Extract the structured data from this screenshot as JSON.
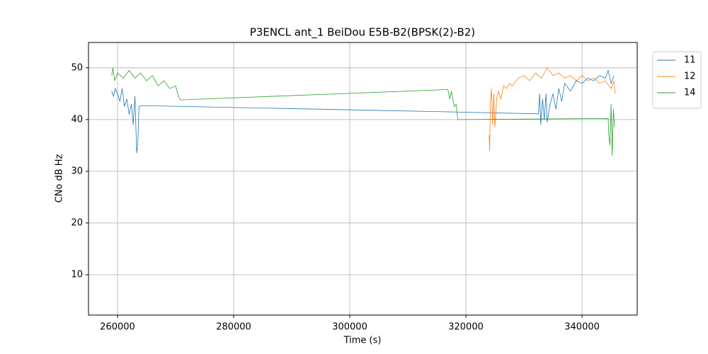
{
  "chart_data": {
    "type": "line",
    "title": "P3ENCL ant_1 BeiDou E5B-B2(BPSK(2)-B2)",
    "x_label": "Time (s)",
    "y_label": "CNo dB Hz",
    "xlim": [
      255000,
      349500
    ],
    "ylim": [
      2.2,
      54.9
    ],
    "xticks": [
      260000,
      280000,
      300000,
      320000,
      340000
    ],
    "yticks": [
      10,
      20,
      30,
      40,
      50
    ],
    "grid": true,
    "legend": "outside upper right",
    "series": [
      {
        "name": "11",
        "color": "#1f77b4",
        "x": [
          259000,
          259300,
          259600,
          260000,
          260400,
          260800,
          261200,
          261600,
          262000,
          262400,
          262700,
          263000,
          263300,
          263500,
          263700,
          264000,
          316500,
          332500,
          332700,
          332900,
          333200,
          333500,
          333800,
          334000,
          334500,
          335000,
          335500,
          336000,
          336500,
          337000,
          338000,
          339000,
          340000,
          341000,
          342000,
          343000,
          344000,
          344500,
          345000,
          345500
        ],
        "values": [
          45.5,
          44.5,
          46,
          45,
          43.5,
          46,
          42.5,
          44,
          41,
          43,
          39,
          44.5,
          33.5,
          35.5,
          42.5,
          42.7,
          41.5,
          41.1,
          45,
          39,
          44,
          40,
          45,
          39.5,
          43,
          45,
          42,
          46,
          43.5,
          47,
          45.5,
          47.5,
          47,
          48,
          47.5,
          48.5,
          48,
          49.5,
          47,
          48.5
        ]
      },
      {
        "name": "12",
        "color": "#ff7f0e",
        "x": [
          324000,
          324100,
          324200,
          324400,
          324600,
          324800,
          325000,
          325300,
          325600,
          326000,
          326500,
          327000,
          327500,
          328000,
          329000,
          330000,
          331000,
          332000,
          333000,
          334000,
          335000,
          336000,
          337000,
          338000,
          339000,
          340000,
          341000,
          342000,
          343000,
          344000,
          345000,
          345500,
          345700
        ],
        "values": [
          37,
          34,
          43,
          46,
          39,
          45,
          38.5,
          44,
          45.5,
          44,
          46.5,
          46,
          47,
          46.5,
          48,
          48.5,
          47.5,
          49,
          48,
          50,
          48.5,
          49,
          48,
          48.5,
          47.5,
          48.5,
          47.5,
          48,
          47,
          47.5,
          46,
          47.5,
          45
        ]
      },
      {
        "name": "14",
        "color": "#2ca02c",
        "x": [
          259000,
          259200,
          259500,
          260000,
          261000,
          262000,
          263000,
          264000,
          265000,
          266000,
          267000,
          268000,
          269000,
          270000,
          270500,
          270800,
          316900,
          317200,
          317500,
          318000,
          318300,
          318600,
          344500,
          344600,
          344800,
          345000,
          345200,
          345400,
          345600
        ],
        "values": [
          48.5,
          50,
          47.5,
          49,
          48,
          49.5,
          48,
          49,
          47.5,
          48.5,
          46.5,
          47.5,
          46,
          46.5,
          44.5,
          43.8,
          45.8,
          44,
          45.5,
          42.5,
          43,
          40,
          40.2,
          37,
          35,
          43,
          33,
          42,
          38.5
        ]
      }
    ]
  }
}
